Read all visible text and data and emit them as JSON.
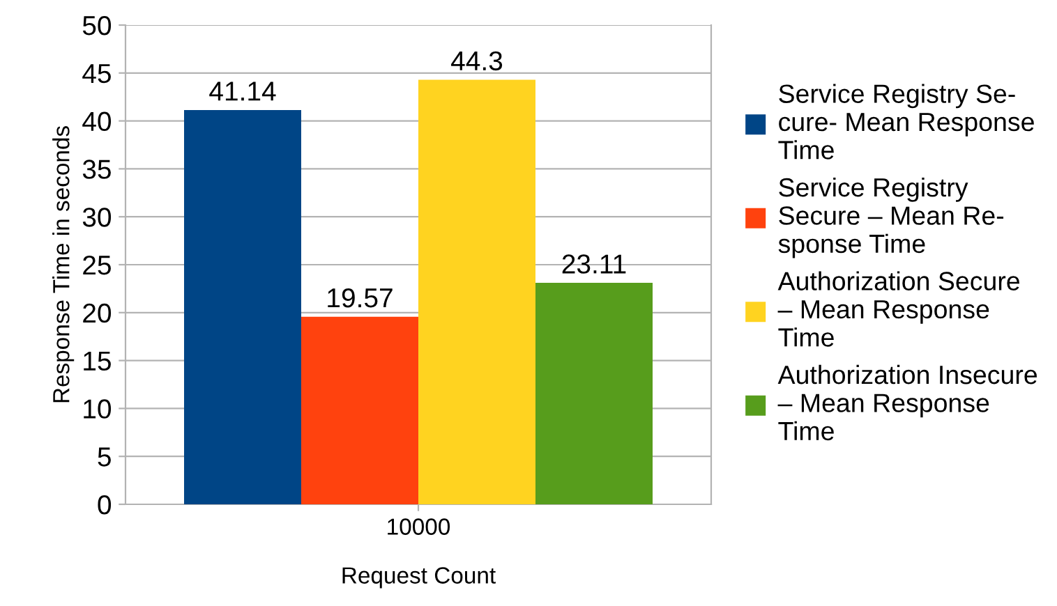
{
  "chart_data": {
    "type": "bar",
    "xlabel": "Request Count",
    "ylabel": "Response Time in seconds",
    "categories": [
      "10000"
    ],
    "series": [
      {
        "name": "Service Registry Se-\ncure- Mean Response\nTime",
        "color": "#004586",
        "values": [
          41.14
        ]
      },
      {
        "name": "Service Registry\nSecure – Mean Re-\nsponse Time",
        "color": "#ff420e",
        "values": [
          19.57
        ]
      },
      {
        "name": "Authorization Secure\n– Mean Response\nTime",
        "color": "#ffd320",
        "values": [
          44.3
        ]
      },
      {
        "name": "Authorization Insecure\n– Mean Response\nTime",
        "color": "#579d1c",
        "values": [
          23.11
        ]
      }
    ],
    "ylim": [
      0,
      50
    ],
    "yticks": [
      0,
      5,
      10,
      15,
      20,
      25,
      30,
      35,
      40,
      45,
      50
    ],
    "grid": "y",
    "legend": "right",
    "data_labels": true
  }
}
